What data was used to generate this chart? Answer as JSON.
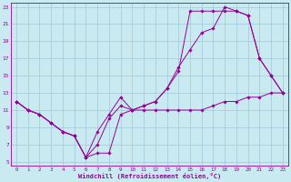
{
  "xlabel": "Windchill (Refroidissement éolien,°C)",
  "bg_color": "#c8eaf0",
  "grid_color": "#a0c8d8",
  "line_color": "#990099",
  "xlim": [
    -0.5,
    23.5
  ],
  "ylim": [
    4.5,
    23.5
  ],
  "xticks": [
    0,
    1,
    2,
    3,
    4,
    5,
    6,
    7,
    8,
    9,
    10,
    11,
    12,
    13,
    14,
    15,
    16,
    17,
    18,
    19,
    20,
    21,
    22,
    23
  ],
  "yticks": [
    5,
    7,
    9,
    11,
    13,
    15,
    17,
    19,
    21,
    23
  ],
  "series": [
    {
      "x": [
        0,
        1,
        2,
        3,
        4,
        5,
        6,
        7,
        8,
        9,
        10,
        11,
        12,
        13,
        14,
        15,
        16,
        17,
        18,
        19,
        20,
        21,
        22,
        23
      ],
      "y": [
        12,
        11,
        10.5,
        9.5,
        8.5,
        8,
        5.5,
        8.5,
        10.5,
        12.5,
        11,
        11.5,
        12,
        13.5,
        16,
        18,
        20,
        20.5,
        23,
        22.5,
        22,
        17,
        15,
        13
      ]
    },
    {
      "x": [
        0,
        1,
        2,
        3,
        4,
        5,
        6,
        7,
        8,
        9,
        10,
        11,
        12,
        13,
        14,
        15,
        16,
        17,
        18,
        19,
        20,
        21,
        22,
        23
      ],
      "y": [
        12,
        11,
        10.5,
        9.5,
        8.5,
        8,
        5.5,
        7,
        10,
        11.5,
        11,
        11.5,
        12,
        13.5,
        15.5,
        22.5,
        22.5,
        22.5,
        22.5,
        22.5,
        22,
        17,
        15,
        13
      ]
    },
    {
      "x": [
        0,
        1,
        2,
        3,
        4,
        5,
        6,
        7,
        8,
        9,
        10,
        11,
        12,
        13,
        14,
        15,
        16,
        17,
        18,
        19,
        20,
        21,
        22,
        23
      ],
      "y": [
        12,
        11,
        10.5,
        9.5,
        8.5,
        8,
        5.5,
        6,
        6,
        10.5,
        11,
        11,
        11,
        11,
        11,
        11,
        11,
        11.5,
        12,
        12,
        12.5,
        12.5,
        13,
        13
      ]
    }
  ]
}
